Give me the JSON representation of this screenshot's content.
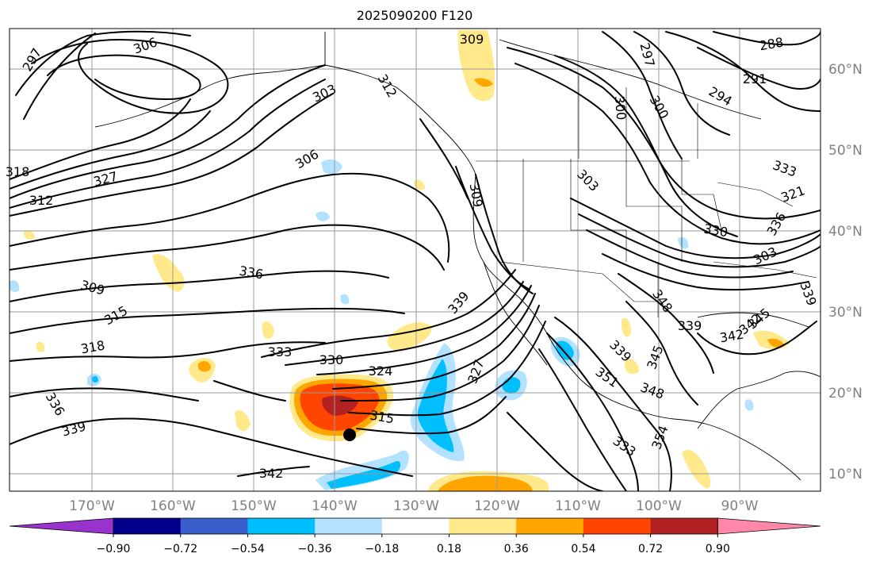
{
  "title": "2025090200 F120",
  "map": {
    "lon_labels": [
      "170°W",
      "160°W",
      "150°W",
      "140°W",
      "130°W",
      "120°W",
      "110°W",
      "100°W",
      "90°W"
    ],
    "lat_labels": [
      "60°N",
      "50°N",
      "40°N",
      "30°N",
      "20°N",
      "10°N"
    ],
    "grid": true,
    "marker": {
      "name": "storm-position-dot",
      "lon": -139.8,
      "lat": 14.7
    }
  },
  "contour_labels": [
    "309",
    "306",
    "303",
    "297",
    "300",
    "288",
    "291",
    "294",
    "297",
    "300",
    "306",
    "312",
    "318",
    "327",
    "312",
    "303",
    "309",
    "321",
    "330",
    "303",
    "309",
    "315",
    "336",
    "339",
    "327",
    "318",
    "333",
    "330",
    "324",
    "315",
    "336",
    "339",
    "342",
    "333",
    "339",
    "345",
    "348",
    "351",
    "354",
    "348",
    "345",
    "342",
    "342",
    "339",
    "336",
    "333",
    "339",
    "348"
  ],
  "colorbar": {
    "ticks": [
      "−0.90",
      "−0.72",
      "−0.54",
      "−0.36",
      "−0.18",
      "0.18",
      "0.36",
      "0.54",
      "0.72",
      "0.90"
    ],
    "colors": [
      "#9933cc",
      "#00008b",
      "#3a5fcd",
      "#00bfff",
      "#b2e2ff",
      "#ffffff",
      "#ffe98a",
      "#ffa500",
      "#ff4500",
      "#b22222",
      "#ff88aa"
    ]
  }
}
